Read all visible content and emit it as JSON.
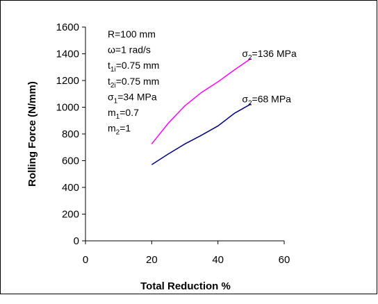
{
  "chart_data": {
    "type": "line",
    "xlabel": "Total Reduction %",
    "ylabel": "Rolling Force (N/mm)",
    "xlim": [
      0,
      60
    ],
    "ylim": [
      0,
      1600
    ],
    "xticks": [
      0,
      20,
      40,
      60
    ],
    "yticks": [
      0,
      200,
      400,
      600,
      800,
      1000,
      1200,
      1400,
      1600
    ],
    "grid": false,
    "series": [
      {
        "name": "σ2=136 MPa",
        "label_main": "σ",
        "label_sub": "2",
        "label_rest": "=136 MPa",
        "color": "#ff00ff",
        "x": [
          20,
          25,
          30,
          35,
          40,
          45,
          50
        ],
        "y": [
          725,
          880,
          1010,
          1110,
          1190,
          1280,
          1365
        ]
      },
      {
        "name": "σ2=68 MPa",
        "label_main": "σ",
        "label_sub": "2",
        "label_rest": "=68 MPa",
        "color": "#000080",
        "x": [
          20,
          25,
          30,
          35,
          40,
          45,
          50
        ],
        "y": [
          570,
          650,
          725,
          790,
          860,
          955,
          1025
        ]
      }
    ],
    "parameters": [
      {
        "main": "R=100 mm",
        "sub": "",
        "rest": ""
      },
      {
        "main": "ω=1 rad/s",
        "sub": "",
        "rest": ""
      },
      {
        "main": "t",
        "sub": "1i",
        "rest": "=0.75 mm"
      },
      {
        "main": "t",
        "sub": "2i",
        "rest": "=0.75 mm"
      },
      {
        "main": "σ",
        "sub": "1",
        "rest": "=34 MPa"
      },
      {
        "main": "m",
        "sub": "1",
        "rest": "=0.7"
      },
      {
        "main": "m",
        "sub": "2",
        "rest": "=1"
      }
    ]
  }
}
